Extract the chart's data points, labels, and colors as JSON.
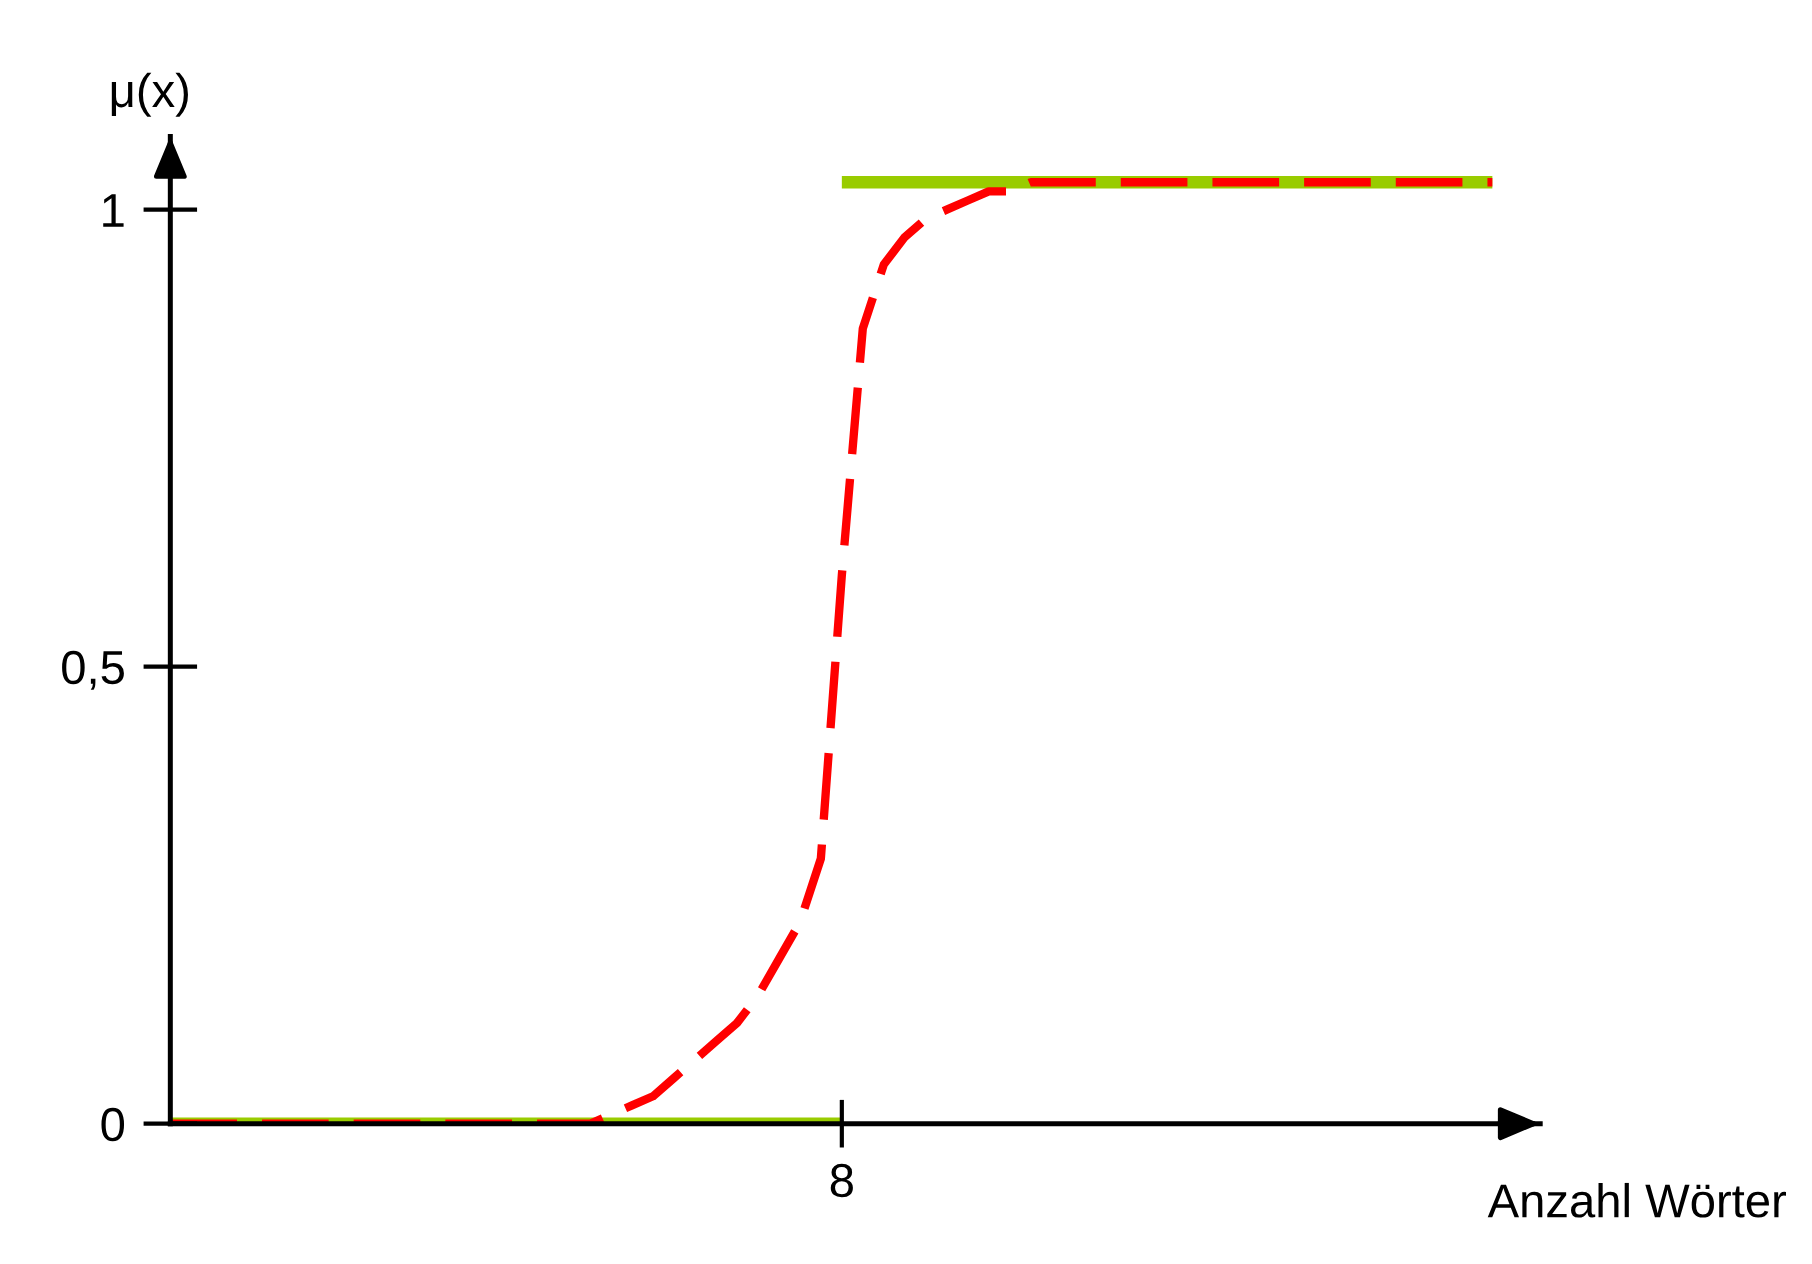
{
  "chart_data": {
    "type": "line",
    "xlabel": "Anzahl Wörter",
    "ylabel": "μ(x)",
    "categories": [
      null,
      null,
      null,
      null,
      null,
      null,
      null,
      null,
      null,
      null,
      null,
      null,
      null,
      null,
      null,
      null,
      null,
      null,
      null,
      null,
      null,
      null,
      null,
      null,
      null,
      null,
      null,
      null,
      null,
      null,
      null,
      null,
      "8",
      null,
      null,
      null,
      null,
      null,
      null,
      null,
      null,
      null,
      null,
      null,
      null,
      null,
      null,
      null,
      null,
      null,
      null,
      null,
      null,
      null,
      null,
      null,
      null,
      null,
      null,
      null,
      null,
      null,
      null,
      null,
      null
    ],
    "ylim": [
      0,
      1.08
    ],
    "yticks": [
      0,
      {
        "value": 0.5,
        "label": "0,5"
      },
      1
    ],
    "grid": false,
    "legend": false,
    "series": [
      {
        "color": "#99cc00",
        "line_style": "solid",
        "values": [
          0,
          0,
          0,
          0,
          0,
          0,
          0,
          0,
          0,
          0,
          0,
          0,
          0,
          0,
          0,
          0,
          0,
          0,
          0,
          0,
          0,
          0,
          0,
          0,
          0,
          0,
          0,
          0,
          0,
          0,
          0,
          0,
          0,
          null,
          null,
          null,
          null,
          null,
          null,
          null,
          null,
          null,
          null,
          null,
          null,
          null,
          null,
          null,
          null,
          null,
          null,
          null,
          null,
          null,
          null,
          null,
          null,
          null,
          null,
          null,
          null,
          null,
          null,
          null,
          null
        ]
      },
      {
        "color": "#99cc00",
        "line_style": "solid",
        "values": [
          null,
          null,
          null,
          null,
          null,
          null,
          null,
          null,
          null,
          null,
          null,
          null,
          null,
          null,
          null,
          null,
          null,
          null,
          null,
          null,
          null,
          null,
          null,
          null,
          null,
          null,
          null,
          null,
          null,
          null,
          null,
          null,
          1.03,
          1.03,
          1.03,
          1.03,
          1.03,
          1.03,
          1.03,
          1.03,
          1.03,
          1.03,
          1.03,
          1.03,
          1.03,
          1.03,
          1.03,
          1.03,
          1.03,
          1.03,
          1.03,
          1.03,
          1.03,
          1.03,
          1.03,
          1.03,
          1.03,
          1.03,
          1.03,
          1.03,
          1.03,
          1.03,
          1.03,
          1.03,
          null
        ]
      },
      {
        "color": "#ff0000",
        "line_style": "dashed",
        "values": [
          0,
          0,
          0,
          0,
          0,
          0,
          0,
          0,
          0,
          0,
          0,
          0,
          0,
          0,
          0,
          0,
          0,
          0,
          0,
          0,
          0,
          0.01,
          0.02,
          0.03,
          0.05,
          0.07,
          0.09,
          0.11,
          0.14,
          0.18,
          0.22,
          0.29,
          0.6,
          0.87,
          0.94,
          0.97,
          0.99,
          1.0,
          1.01,
          1.02,
          1.02,
          1.03,
          1.03,
          1.03,
          1.03,
          1.03,
          1.03,
          1.03,
          1.03,
          1.03,
          1.03,
          1.03,
          1.03,
          1.03,
          1.03,
          1.03,
          1.03,
          1.03,
          1.03,
          1.03,
          1.03,
          1.03,
          1.03,
          1.03,
          null
        ]
      }
    ]
  }
}
